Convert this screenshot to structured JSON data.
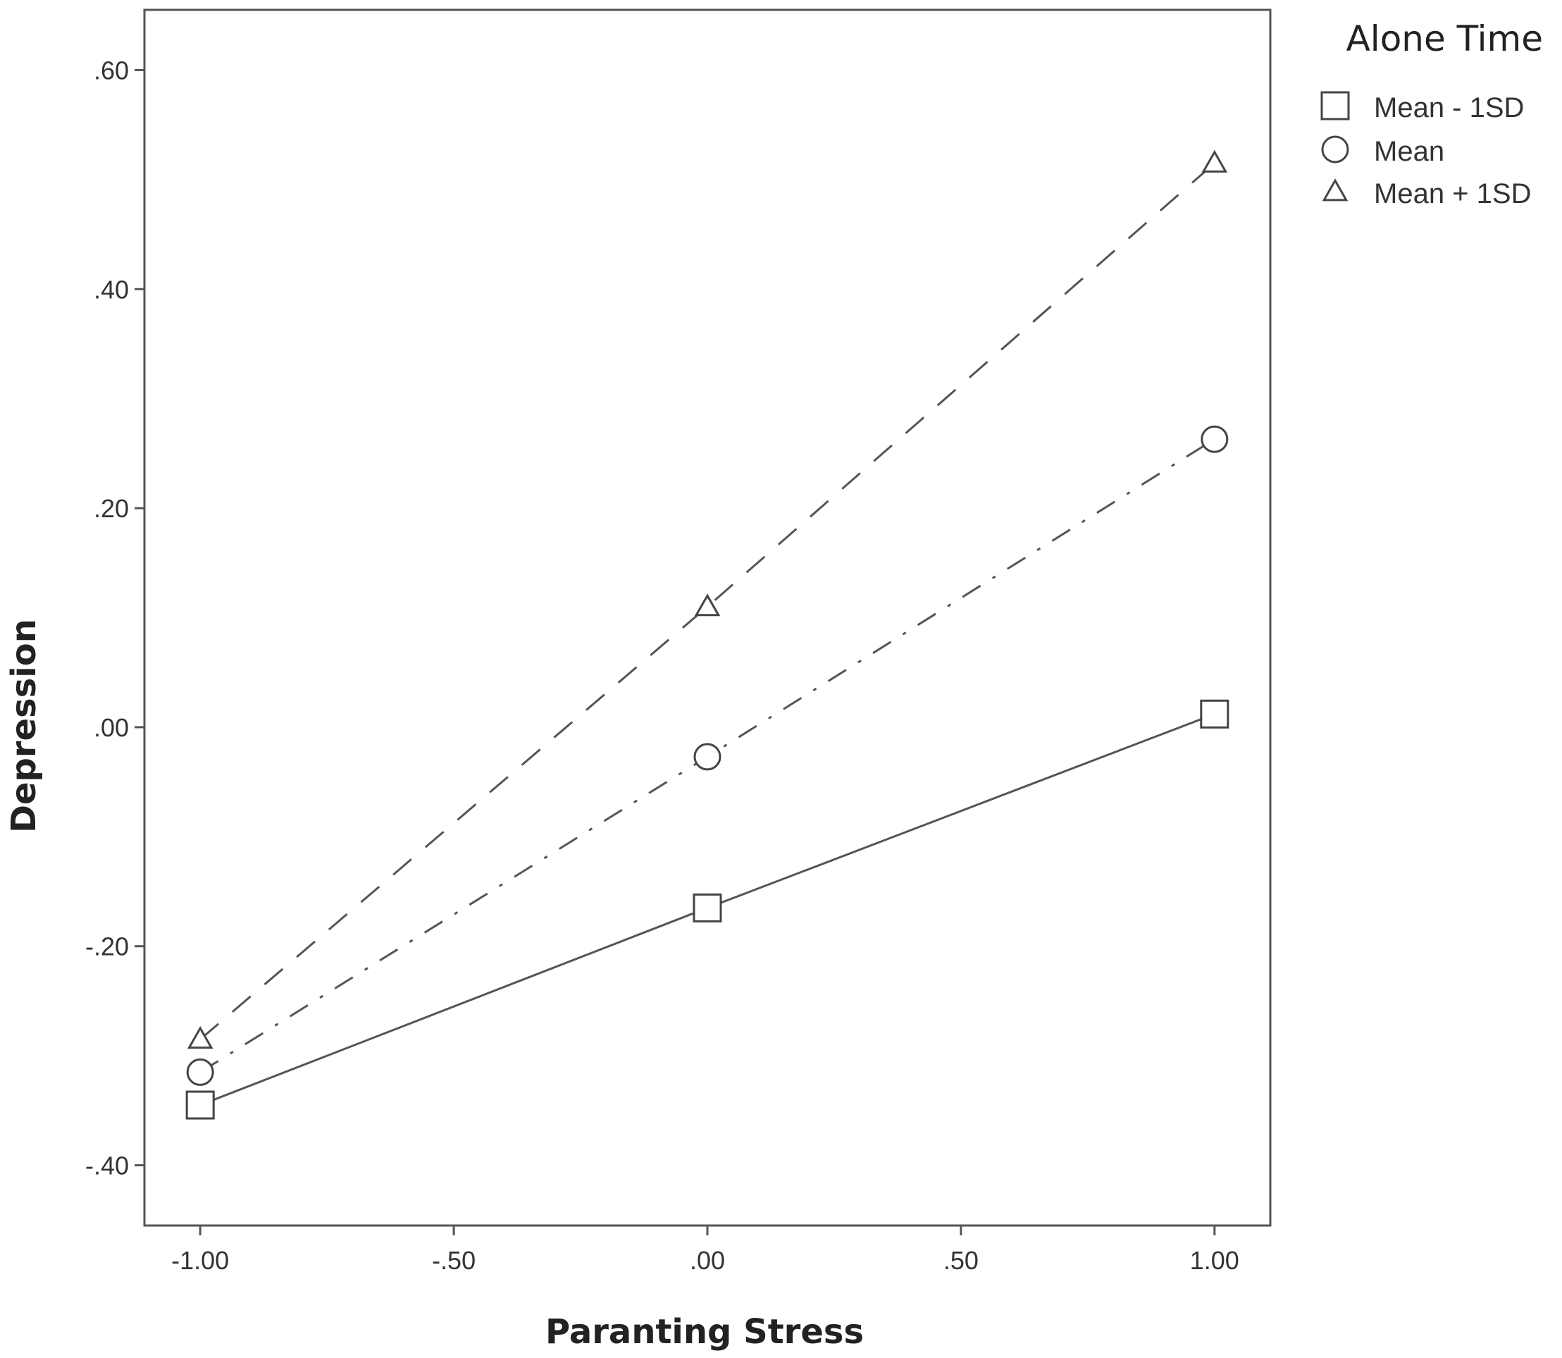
{
  "chart_data": {
    "type": "line",
    "xlabel": "Paranting Stress",
    "ylabel": "Depression",
    "x": [
      -1.0,
      0.0,
      1.0
    ],
    "xlim": [
      -1.11,
      1.11
    ],
    "ylim": [
      -0.455,
      0.655
    ],
    "x_ticks": [
      -1.0,
      -0.5,
      0.0,
      0.5,
      1.0
    ],
    "x_tick_labels": [
      "-1.00",
      "-.50",
      ".00",
      ".50",
      "1.00"
    ],
    "y_ticks": [
      -0.4,
      -0.2,
      0.0,
      0.2,
      0.4,
      0.6
    ],
    "y_tick_labels": [
      "-.40",
      "-.20",
      ".00",
      ".20",
      ".40",
      ".60"
    ],
    "grid": false,
    "legend": {
      "title": "Alone Time",
      "placement": "top-right, outside plot"
    },
    "series": [
      {
        "name": "Mean - 1SD",
        "marker": "square",
        "line_style": "solid",
        "values": [
          -0.345,
          -0.165,
          0.012
        ]
      },
      {
        "name": "Mean",
        "marker": "circle",
        "line_style": "dash-dot",
        "values": [
          -0.315,
          -0.027,
          0.263
        ]
      },
      {
        "name": "Mean + 1SD",
        "marker": "triangle",
        "line_style": "dashed",
        "values": [
          -0.285,
          0.11,
          0.515
        ]
      }
    ],
    "colors": {
      "line": "#555555",
      "marker": "#444444",
      "frame": "#555555",
      "background": "#ffffff"
    }
  }
}
